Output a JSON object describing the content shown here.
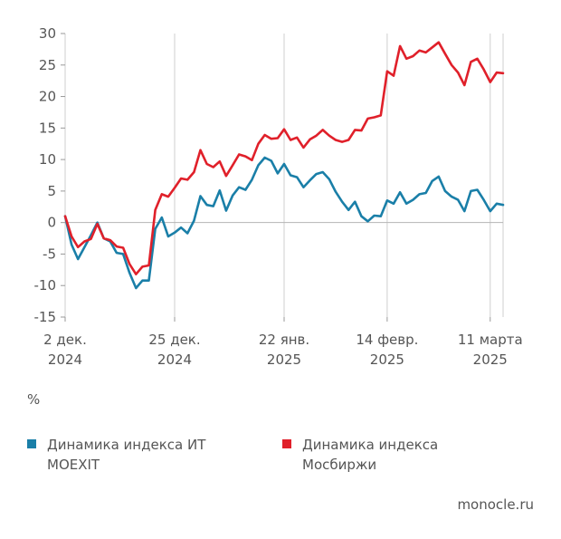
{
  "chart_data": {
    "type": "line",
    "unit_label": "%",
    "ylim": [
      -15,
      30
    ],
    "y_ticks": [
      -15,
      -10,
      -5,
      0,
      5,
      10,
      15,
      20,
      25,
      30
    ],
    "x_ticks": [
      {
        "line1": "2 дек.",
        "line2": "2024",
        "index": 0
      },
      {
        "line1": "25 дек.",
        "line2": "2024",
        "index": 17
      },
      {
        "line1": "22 янв.",
        "line2": "2025",
        "index": 34
      },
      {
        "line1": "14 февр.",
        "line2": "2025",
        "index": 50
      },
      {
        "line1": "11 марта",
        "line2": "2025",
        "index": 66
      }
    ],
    "grid": "vertical",
    "series": [
      {
        "name": "Динамика индекса ИТ MOEXIT",
        "color": "#1a7fa8",
        "values": [
          1.0,
          -3.5,
          -5.8,
          -3.9,
          -2.0,
          0.0,
          -2.5,
          -3.0,
          -4.8,
          -5.0,
          -8.0,
          -10.4,
          -9.2,
          -9.2,
          -1.0,
          0.8,
          -2.2,
          -1.6,
          -0.8,
          -1.7,
          0.3,
          4.2,
          2.8,
          2.6,
          5.1,
          1.9,
          4.3,
          5.6,
          5.2,
          6.8,
          9.1,
          10.3,
          9.8,
          7.8,
          9.3,
          7.5,
          7.2,
          5.6,
          6.7,
          7.7,
          8.0,
          6.9,
          4.9,
          3.3,
          2.0,
          3.3,
          1.0,
          0.2,
          1.1,
          1.0,
          3.5,
          3.0,
          4.8,
          3.0,
          3.6,
          4.5,
          4.7,
          6.6,
          7.3,
          5.0,
          4.1,
          3.6,
          1.8,
          5.0,
          5.2,
          3.6,
          1.8,
          3.0,
          2.8
        ]
      },
      {
        "name": "Динамика индекса Мосбиржи",
        "color": "#e0202a",
        "values": [
          1.0,
          -2.2,
          -3.9,
          -3.0,
          -2.6,
          -0.2,
          -2.5,
          -2.8,
          -3.8,
          -4.0,
          -6.6,
          -8.2,
          -7.0,
          -6.8,
          2.0,
          4.5,
          4.1,
          5.5,
          7.0,
          6.8,
          8.0,
          11.5,
          9.3,
          8.8,
          9.7,
          7.4,
          9.1,
          10.8,
          10.5,
          9.9,
          12.5,
          13.9,
          13.3,
          13.4,
          14.8,
          13.1,
          13.5,
          11.9,
          13.2,
          13.8,
          14.7,
          13.8,
          13.1,
          12.8,
          13.1,
          14.7,
          14.6,
          16.5,
          16.7,
          17.0,
          24.0,
          23.3,
          28.0,
          26.0,
          26.4,
          27.3,
          27.0,
          27.8,
          28.6,
          26.8,
          25.0,
          23.8,
          21.8,
          25.5,
          26.0,
          24.3,
          22.3,
          23.8,
          23.7
        ]
      }
    ]
  },
  "legend": [
    {
      "label": "Динамика индекса ИТ MOEXIT",
      "color": "#1a7fa8"
    },
    {
      "label": "Динамика индекса Мосбиржи",
      "color": "#e0202a"
    }
  ],
  "source": "monocle.ru"
}
